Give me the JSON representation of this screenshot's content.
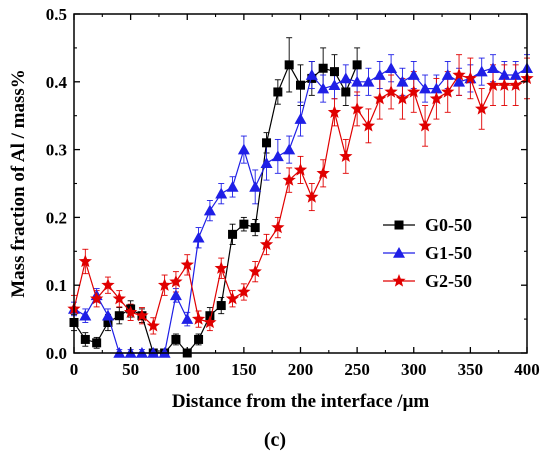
{
  "chart_data": {
    "type": "line",
    "xlabel": "Distance from the interface /μm",
    "ylabel": "Mass fraction of Al / mass%",
    "xlim": [
      0,
      400
    ],
    "ylim": [
      0,
      0.5
    ],
    "xticks": [
      0,
      50,
      100,
      150,
      200,
      250,
      300,
      350,
      400
    ],
    "yticks": [
      0.0,
      0.1,
      0.2,
      0.3,
      0.4,
      0.5
    ],
    "grid": false,
    "legend_position": "right-center",
    "caption": "(c)",
    "series": [
      {
        "name": "G0-50",
        "color": "#000000",
        "marker": "square",
        "x": [
          0,
          10,
          20,
          30,
          40,
          50,
          60,
          70,
          80,
          90,
          100,
          110,
          120,
          130,
          140,
          150,
          160,
          170,
          180,
          190,
          200,
          210,
          220,
          230,
          240,
          250
        ],
        "y": [
          0.045,
          0.02,
          0.015,
          0.045,
          0.055,
          0.065,
          0.055,
          0.0,
          0.0,
          0.02,
          0.0,
          0.02,
          0.055,
          0.07,
          0.175,
          0.19,
          0.185,
          0.31,
          0.385,
          0.425,
          0.395,
          0.405,
          0.42,
          0.415,
          0.385,
          0.425
        ],
        "err": [
          0.012,
          0.01,
          0.008,
          0.012,
          0.012,
          0.012,
          0.01,
          0.005,
          0.005,
          0.008,
          0.005,
          0.008,
          0.012,
          0.012,
          0.015,
          0.01,
          0.012,
          0.015,
          0.018,
          0.04,
          0.03,
          0.025,
          0.03,
          0.025,
          0.02,
          0.025
        ]
      },
      {
        "name": "G1-50",
        "color": "#1f1fe6",
        "marker": "triangle",
        "x": [
          0,
          10,
          20,
          30,
          40,
          50,
          60,
          70,
          80,
          90,
          100,
          110,
          120,
          130,
          140,
          150,
          160,
          170,
          180,
          190,
          200,
          210,
          220,
          230,
          240,
          250,
          260,
          270,
          280,
          290,
          300,
          310,
          320,
          330,
          340,
          350,
          360,
          370,
          380,
          390,
          400
        ],
        "y": [
          0.065,
          0.055,
          0.085,
          0.055,
          0.0,
          0.0,
          0.0,
          0.0,
          0.0,
          0.085,
          0.05,
          0.17,
          0.21,
          0.235,
          0.245,
          0.3,
          0.245,
          0.28,
          0.29,
          0.3,
          0.345,
          0.41,
          0.39,
          0.395,
          0.405,
          0.4,
          0.4,
          0.41,
          0.42,
          0.4,
          0.41,
          0.39,
          0.39,
          0.41,
          0.4,
          0.405,
          0.415,
          0.42,
          0.41,
          0.41,
          0.42
        ],
        "err": [
          0.01,
          0.01,
          0.01,
          0.01,
          0.005,
          0.005,
          0.005,
          0.005,
          0.005,
          0.01,
          0.01,
          0.015,
          0.015,
          0.015,
          0.015,
          0.02,
          0.025,
          0.025,
          0.025,
          0.02,
          0.025,
          0.02,
          0.02,
          0.02,
          0.02,
          0.02,
          0.02,
          0.02,
          0.02,
          0.02,
          0.02,
          0.02,
          0.02,
          0.02,
          0.02,
          0.02,
          0.02,
          0.02,
          0.02,
          0.02,
          0.02
        ]
      },
      {
        "name": "G2-50",
        "color": "#e00000",
        "marker": "star",
        "x": [
          0,
          10,
          20,
          30,
          40,
          50,
          60,
          70,
          80,
          90,
          100,
          110,
          120,
          130,
          140,
          150,
          160,
          170,
          180,
          190,
          200,
          210,
          220,
          230,
          240,
          250,
          260,
          270,
          280,
          290,
          300,
          310,
          320,
          330,
          340,
          350,
          360,
          370,
          380,
          390,
          400
        ],
        "y": [
          0.065,
          0.135,
          0.08,
          0.1,
          0.08,
          0.06,
          0.055,
          0.04,
          0.1,
          0.105,
          0.13,
          0.05,
          0.045,
          0.125,
          0.08,
          0.09,
          0.12,
          0.16,
          0.185,
          0.255,
          0.27,
          0.23,
          0.265,
          0.355,
          0.29,
          0.36,
          0.335,
          0.375,
          0.385,
          0.375,
          0.385,
          0.335,
          0.375,
          0.385,
          0.41,
          0.405,
          0.36,
          0.395,
          0.395,
          0.395,
          0.405
        ],
        "err": [
          0.02,
          0.018,
          0.012,
          0.012,
          0.012,
          0.012,
          0.012,
          0.012,
          0.015,
          0.015,
          0.015,
          0.012,
          0.012,
          0.015,
          0.012,
          0.012,
          0.015,
          0.015,
          0.015,
          0.018,
          0.02,
          0.02,
          0.02,
          0.02,
          0.025,
          0.025,
          0.025,
          0.03,
          0.025,
          0.03,
          0.03,
          0.03,
          0.03,
          0.03,
          0.03,
          0.03,
          0.03,
          0.03,
          0.03,
          0.03,
          0.03
        ]
      }
    ]
  }
}
